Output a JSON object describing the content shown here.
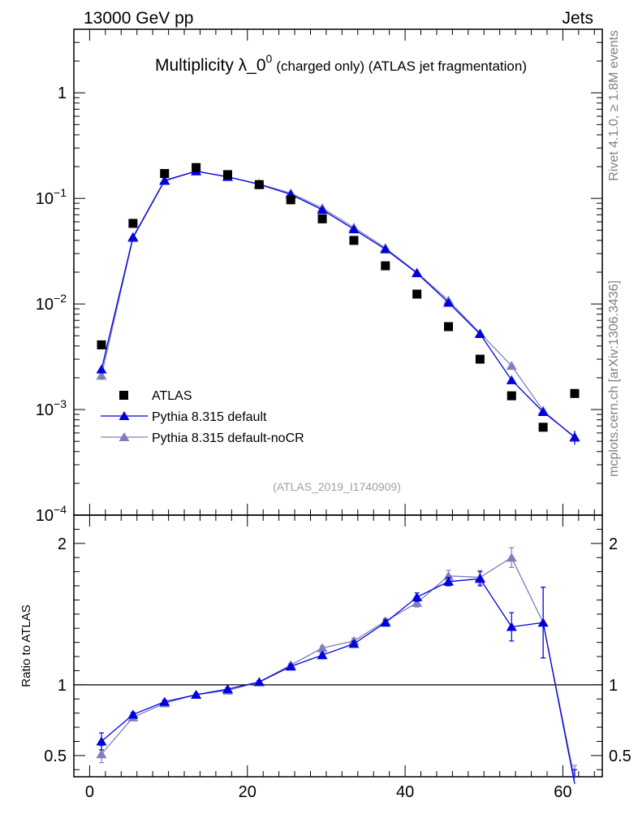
{
  "header": {
    "energy_label": "13000 GeV pp",
    "category_label": "Jets"
  },
  "side_labels": {
    "rivet": "Rivet 4.1.0, ≥ 1.8M events",
    "mcplots": "mcplots.cern.ch [arXiv:1306.3436]"
  },
  "chart_data": [
    {
      "type": "scatter",
      "title": "Multiplicity λ_0",
      "title_sup": "0",
      "subtitle": "(charged only) (ATLAS jet fragmentation)",
      "watermark": "(ATLAS_2019_I1740909)",
      "yscale": "log",
      "xlim": [
        -2,
        65
      ],
      "ylim": [
        0.0001,
        4.0
      ],
      "ytick_labels": [
        {
          "value": 1,
          "base": "1",
          "exp": ""
        },
        {
          "value": 0.1,
          "base": "10",
          "exp": "−1"
        },
        {
          "value": 0.01,
          "base": "10",
          "exp": "−2"
        },
        {
          "value": 0.001,
          "base": "10",
          "exp": "−3"
        },
        {
          "value": 0.0001,
          "base": "10",
          "exp": "−4"
        }
      ],
      "legend_position": "lower-left",
      "x": [
        1.5,
        5.5,
        9.5,
        13.5,
        17.5,
        21.5,
        25.5,
        29.5,
        33.5,
        37.5,
        41.5,
        45.5,
        49.5,
        53.5,
        57.5,
        61.5
      ],
      "series": [
        {
          "name": "ATLAS",
          "marker": "square",
          "color": "#000000",
          "values": [
            0.0041,
            0.058,
            0.172,
            0.196,
            0.168,
            0.135,
            0.097,
            0.064,
            0.04,
            0.023,
            0.0124,
            0.0061,
            0.003,
            0.00135,
            0.00068,
            0.00142
          ]
        },
        {
          "name": "Pythia 8.315 default",
          "marker": "triangle",
          "color": "#0000dd",
          "values": [
            0.0024,
            0.043,
            0.148,
            0.181,
            0.16,
            0.136,
            0.109,
            0.078,
            0.051,
            0.033,
            0.0196,
            0.0103,
            0.0052,
            0.0019,
            0.00095,
            0.00055
          ],
          "errors": [
            0.0002,
            0.001,
            0.002,
            0.002,
            0.002,
            0.002,
            0.0015,
            0.001,
            0.0008,
            0.0005,
            0.0003,
            0.0002,
            0.00012,
            0.0001,
            8e-05,
            8e-05
          ]
        },
        {
          "name": "Pythia 8.315 default-noCR",
          "marker": "triangle",
          "color": "#7f7fbf",
          "values": [
            0.0021,
            0.042,
            0.146,
            0.181,
            0.16,
            0.137,
            0.112,
            0.081,
            0.053,
            0.034,
            0.0199,
            0.0108,
            0.0053,
            0.0026,
            0.00098,
            0.00054
          ],
          "errors": [
            0.0002,
            0.001,
            0.002,
            0.002,
            0.002,
            0.002,
            0.0015,
            0.001,
            0.0008,
            0.0005,
            0.0003,
            0.0002,
            0.00012,
            0.0001,
            8e-05,
            8e-05
          ]
        }
      ]
    },
    {
      "type": "line",
      "ylabel": "Ratio to ATLAS",
      "xlim": [
        -2,
        65
      ],
      "ylim": [
        0.35,
        2.2
      ],
      "reference_line": 1,
      "xtick_labels": [
        {
          "value": 0,
          "label": "0"
        },
        {
          "value": 20,
          "label": "20"
        },
        {
          "value": 40,
          "label": "40"
        },
        {
          "value": 60,
          "label": "60"
        }
      ],
      "ytick_labels": [
        {
          "value": 0.5,
          "label": "0.5"
        },
        {
          "value": 1,
          "label": "1"
        },
        {
          "value": 2,
          "label": "2"
        }
      ],
      "x": [
        1.5,
        5.5,
        9.5,
        13.5,
        17.5,
        21.5,
        25.5,
        29.5,
        33.5,
        37.5,
        41.5,
        45.5,
        49.5,
        53.5,
        57.5,
        61.5
      ],
      "series": [
        {
          "name": "Pythia 8.315 default",
          "color": "#0000dd",
          "values": [
            0.6,
            0.79,
            0.88,
            0.93,
            0.97,
            1.02,
            1.13,
            1.21,
            1.29,
            1.44,
            1.62,
            1.73,
            1.75,
            1.41,
            1.44,
            0.3
          ],
          "errors": [
            0.06,
            0.015,
            0.012,
            0.01,
            0.01,
            0.01,
            0.012,
            0.015,
            0.02,
            0.02,
            0.03,
            0.03,
            0.05,
            0.1,
            0.25,
            0.1
          ]
        },
        {
          "name": "Pythia 8.315 default-noCR",
          "color": "#7f7fbf",
          "values": [
            0.51,
            0.77,
            0.87,
            0.93,
            0.96,
            1.02,
            1.14,
            1.26,
            1.31,
            1.45,
            1.58,
            1.77,
            1.76,
            1.9,
            1.44,
            0.33
          ],
          "errors": [
            0.06,
            0.015,
            0.012,
            0.01,
            0.01,
            0.01,
            0.012,
            0.015,
            0.02,
            0.02,
            0.03,
            0.04,
            0.05,
            0.07,
            0.25,
            0.1
          ]
        }
      ]
    }
  ]
}
